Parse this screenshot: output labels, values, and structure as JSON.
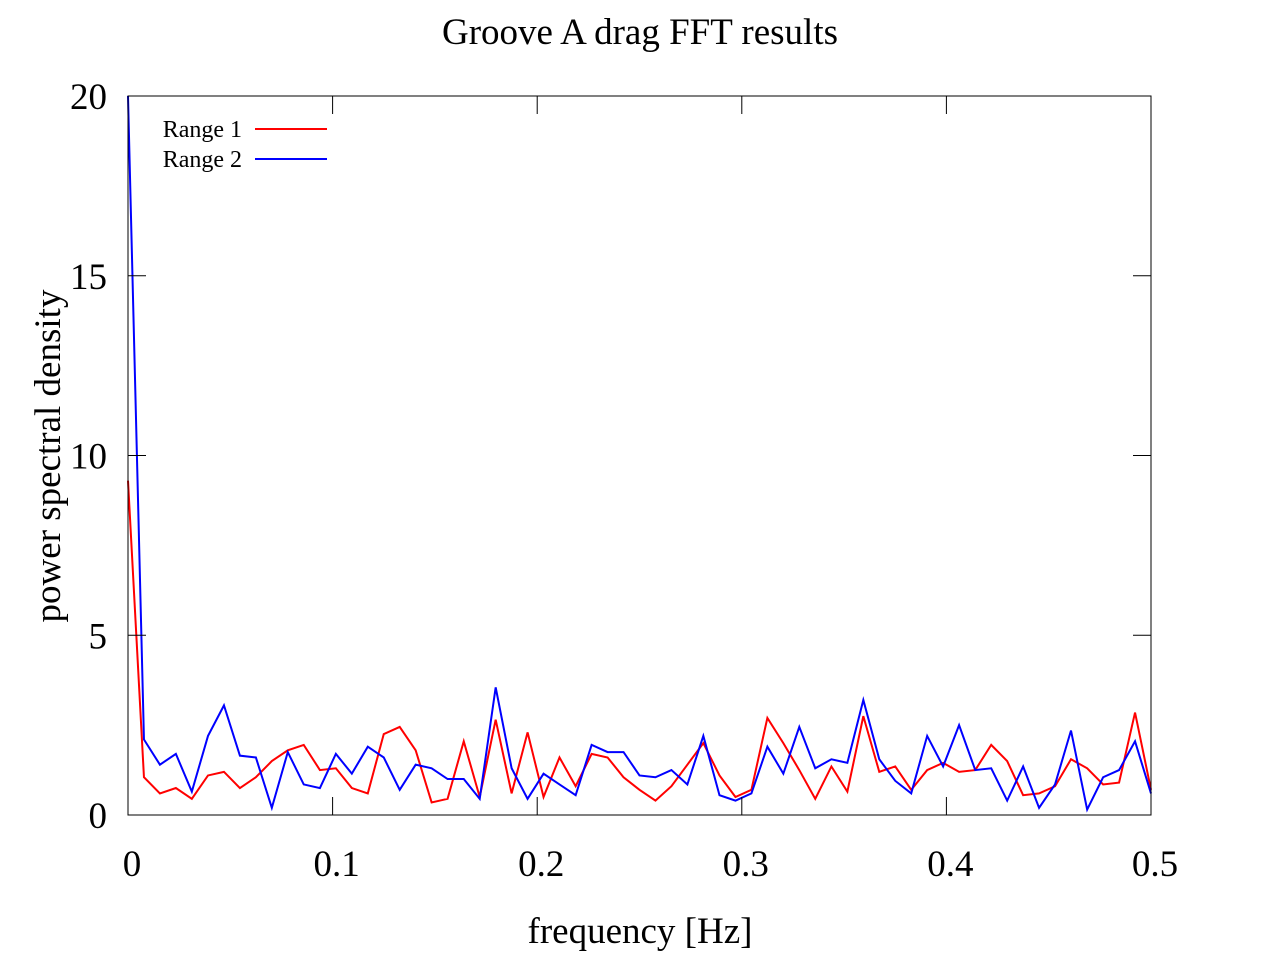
{
  "chart_data": {
    "type": "line",
    "title": "Groove A drag FFT results",
    "xlabel": "frequency [Hz]",
    "ylabel": "power spectral density",
    "xlim": [
      0,
      0.5
    ],
    "ylim": [
      0,
      20
    ],
    "xticks": [
      0,
      0.1,
      0.2,
      0.3,
      0.4,
      0.5
    ],
    "xtick_labels": [
      "0",
      "0.1",
      "0.2",
      "0.3",
      "0.4",
      "0.5"
    ],
    "yticks": [
      0,
      5,
      10,
      15,
      20
    ],
    "ytick_labels": [
      "0",
      "5",
      "10",
      "15",
      "20"
    ],
    "grid": false,
    "legend_position": "top-left",
    "series": [
      {
        "name": "Range 1",
        "color": "#ff0000",
        "x": [
          0,
          0.0078,
          0.0156,
          0.0234,
          0.0312,
          0.0391,
          0.0469,
          0.0547,
          0.0625,
          0.0703,
          0.0781,
          0.0859,
          0.0938,
          0.1016,
          0.1094,
          0.1172,
          0.125,
          0.1328,
          0.1406,
          0.1484,
          0.1562,
          0.1641,
          0.1719,
          0.1797,
          0.1875,
          0.1953,
          0.2031,
          0.2109,
          0.2188,
          0.2266,
          0.2344,
          0.2422,
          0.25,
          0.2578,
          0.2656,
          0.2734,
          0.2812,
          0.2891,
          0.2969,
          0.3047,
          0.3125,
          0.3203,
          0.3281,
          0.3359,
          0.3438,
          0.3516,
          0.3594,
          0.3672,
          0.375,
          0.3828,
          0.3906,
          0.3984,
          0.4062,
          0.4141,
          0.4219,
          0.4297,
          0.4375,
          0.4453,
          0.4531,
          0.4609,
          0.4688,
          0.4766,
          0.4844,
          0.4922,
          0.5
        ],
        "values": [
          9.3,
          1.05,
          0.6,
          0.75,
          0.45,
          1.1,
          1.2,
          0.75,
          1.05,
          1.5,
          1.8,
          1.95,
          1.25,
          1.3,
          0.75,
          0.6,
          2.25,
          2.45,
          1.8,
          0.35,
          0.45,
          2.05,
          0.5,
          2.65,
          0.6,
          2.3,
          0.5,
          1.6,
          0.8,
          1.7,
          1.6,
          1.05,
          0.7,
          0.4,
          0.8,
          1.4,
          2.0,
          1.1,
          0.5,
          0.7,
          2.7,
          2.0,
          1.25,
          0.45,
          1.35,
          0.65,
          2.75,
          1.2,
          1.35,
          0.7,
          1.25,
          1.45,
          1.2,
          1.25,
          1.95,
          1.5,
          0.55,
          0.6,
          0.8,
          1.55,
          1.3,
          0.85,
          0.9,
          2.85,
          0.7
        ]
      },
      {
        "name": "Range 2",
        "color": "#0000ff",
        "x": [
          0,
          0.0078,
          0.0156,
          0.0234,
          0.0312,
          0.0391,
          0.0469,
          0.0547,
          0.0625,
          0.0703,
          0.0781,
          0.0859,
          0.0938,
          0.1016,
          0.1094,
          0.1172,
          0.125,
          0.1328,
          0.1406,
          0.1484,
          0.1562,
          0.1641,
          0.1719,
          0.1797,
          0.1875,
          0.1953,
          0.2031,
          0.2109,
          0.2188,
          0.2266,
          0.2344,
          0.2422,
          0.25,
          0.2578,
          0.2656,
          0.2734,
          0.2812,
          0.2891,
          0.2969,
          0.3047,
          0.3125,
          0.3203,
          0.3281,
          0.3359,
          0.3438,
          0.3516,
          0.3594,
          0.3672,
          0.375,
          0.3828,
          0.3906,
          0.3984,
          0.4062,
          0.4141,
          0.4219,
          0.4297,
          0.4375,
          0.4453,
          0.4531,
          0.4609,
          0.4688,
          0.4766,
          0.4844,
          0.4922,
          0.5
        ],
        "values": [
          20.0,
          2.1,
          1.4,
          1.7,
          0.65,
          2.2,
          3.05,
          1.65,
          1.6,
          0.2,
          1.75,
          0.85,
          0.75,
          1.7,
          1.15,
          1.9,
          1.6,
          0.7,
          1.4,
          1.3,
          1.0,
          1.0,
          0.45,
          3.55,
          1.3,
          0.45,
          1.15,
          0.85,
          0.55,
          1.95,
          1.75,
          1.75,
          1.1,
          1.05,
          1.25,
          0.85,
          2.2,
          0.55,
          0.4,
          0.6,
          1.9,
          1.15,
          2.45,
          1.3,
          1.55,
          1.45,
          3.2,
          1.55,
          0.95,
          0.6,
          2.2,
          1.35,
          2.5,
          1.25,
          1.3,
          0.4,
          1.35,
          0.2,
          0.85,
          2.35,
          0.15,
          1.05,
          1.25,
          2.05,
          0.6
        ]
      }
    ]
  }
}
